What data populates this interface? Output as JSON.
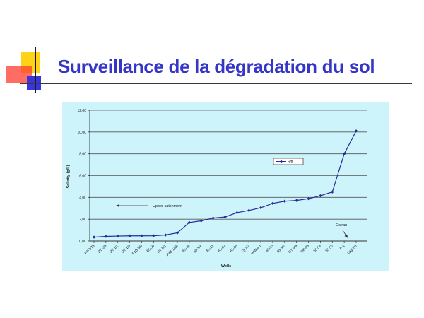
{
  "slide": {
    "title": "Surveillance de la dégradation du sol"
  },
  "chart_data": {
    "type": "line",
    "xlabel": "Wells",
    "ylabel": "Salinity (g/L)",
    "ylim": [
      0,
      12
    ],
    "yticks": [
      "0,00",
      "2,00",
      "4,00",
      "6,00",
      "8,00",
      "10,00",
      "12,00"
    ],
    "grid": true,
    "legend": "upper-right",
    "background": "#ccf4fa",
    "line_color": "#2a2a9a",
    "categories": [
      "PT-2/76",
      "PT-2/6",
      "PT-1/2",
      "PT-1/4",
      "PzB-5/9",
      "65-56",
      "PT-8/1",
      "PzB-1/16",
      "65-46",
      "65-5/4",
      "65-11",
      "65-02",
      "65-08",
      "Dj-1/7",
      "WWdi-1",
      "65-53",
      "65-5/2",
      "DT-9/6",
      "DP-98",
      "65-54",
      "65-50",
      "P-1",
      "Lagune"
    ],
    "series": [
      {
        "name": "S/ft",
        "values": [
          0.35,
          0.42,
          0.45,
          0.47,
          0.47,
          0.48,
          0.55,
          0.75,
          1.7,
          1.85,
          2.1,
          2.2,
          2.6,
          2.8,
          3.05,
          3.45,
          3.65,
          3.72,
          3.88,
          4.15,
          4.5,
          8.0,
          10.1
        ]
      }
    ],
    "annotations": [
      {
        "label": "Upper catchment"
      },
      {
        "label": "Ocean"
      }
    ]
  }
}
